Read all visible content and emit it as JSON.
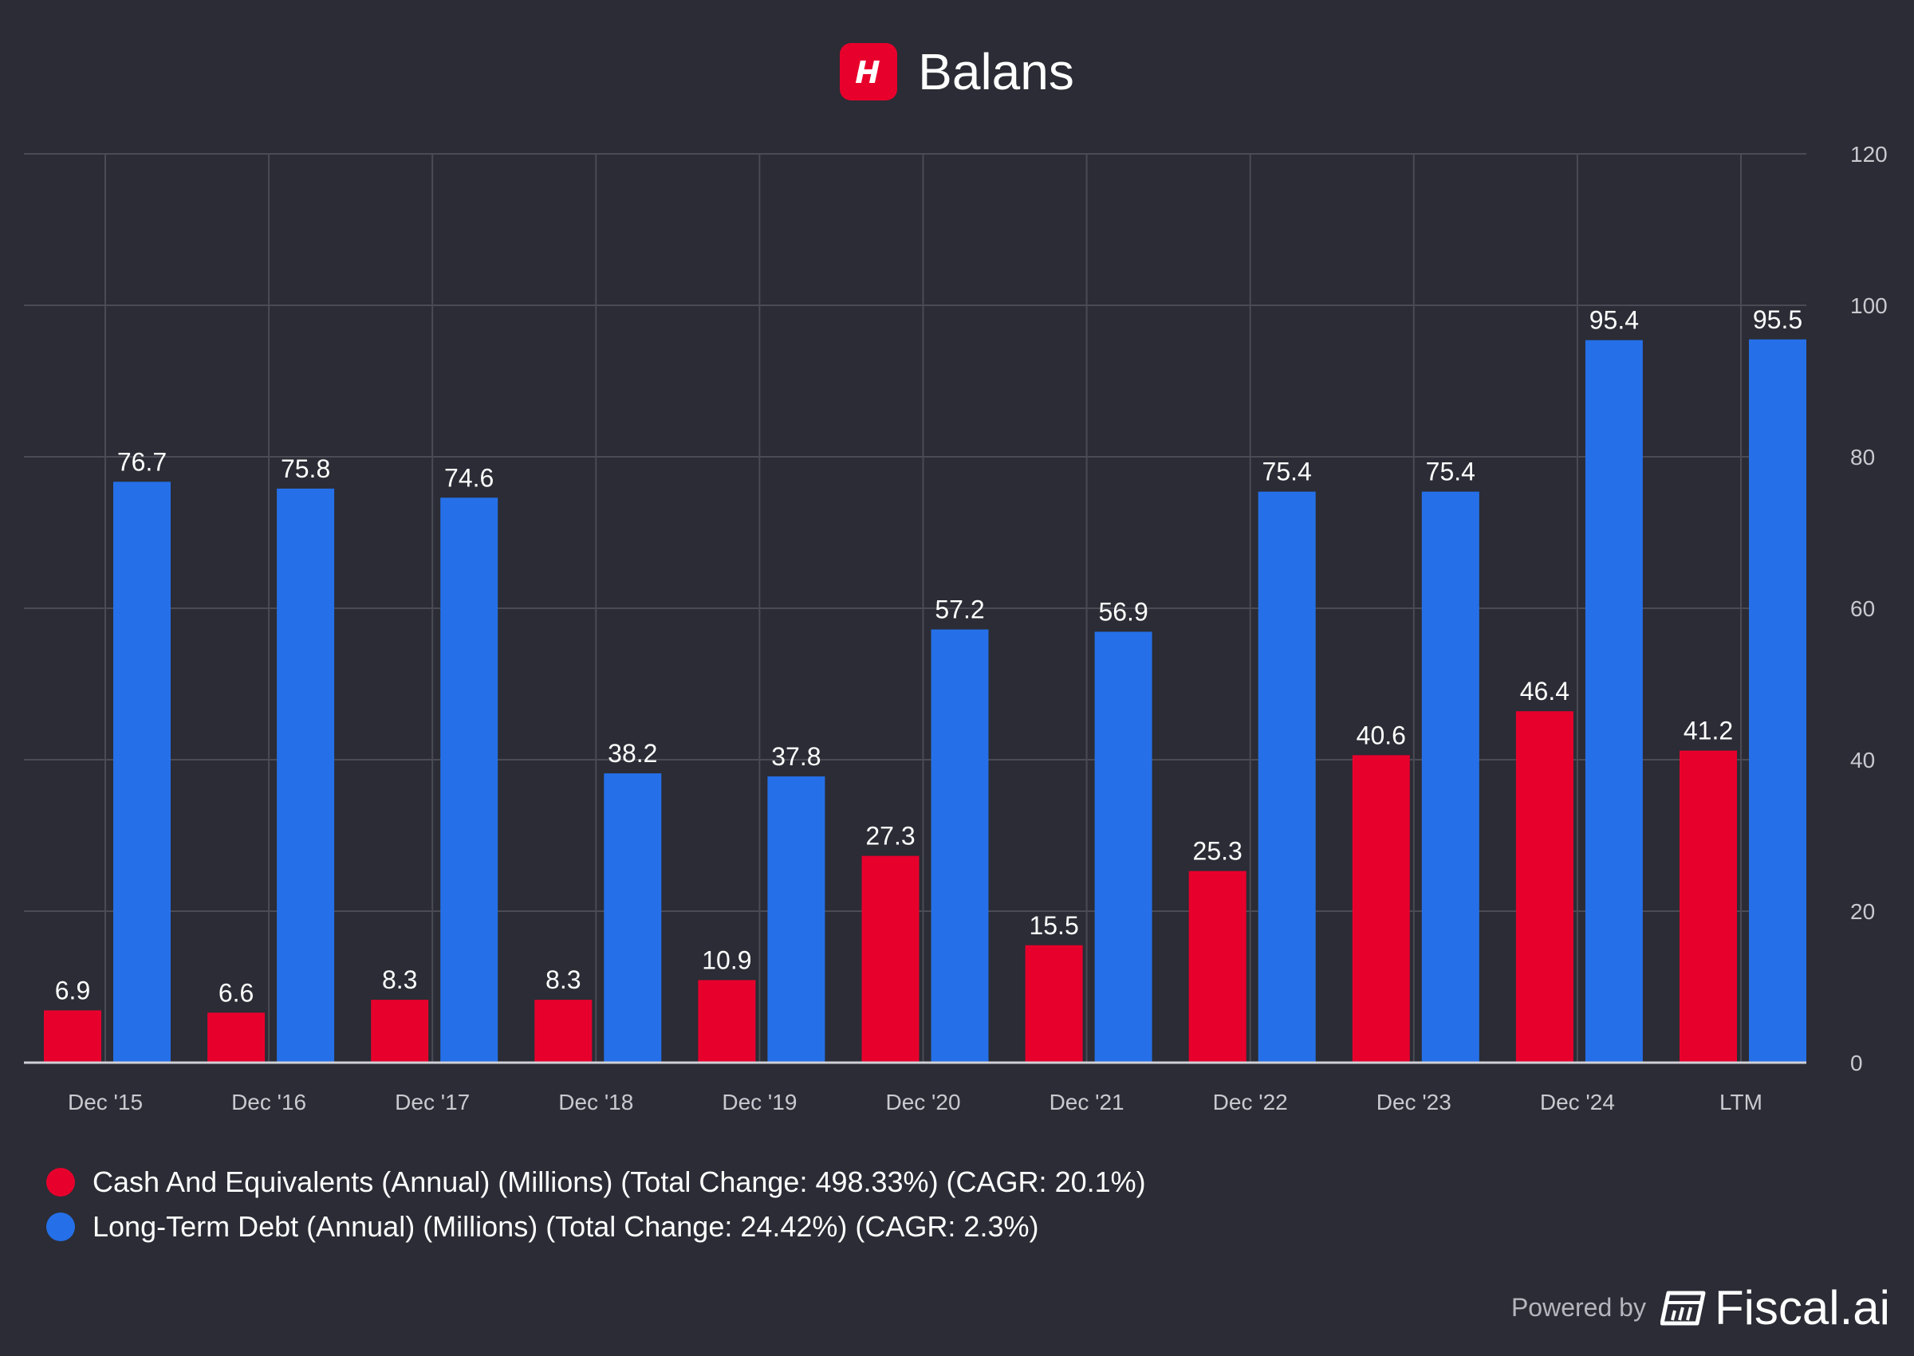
{
  "header": {
    "title": "Balans",
    "logo_letter": "H"
  },
  "footer": {
    "powered_label": "Powered by",
    "brand": "Fiscal.ai"
  },
  "colors": {
    "background": "#2b2c35",
    "cash": "#e8002d",
    "debt": "#2570e8",
    "grid": "#4a4b55",
    "axis_text": "#c9cacf"
  },
  "legend": [
    {
      "label": "Cash And Equivalents (Annual) (Millions) (Total Change: 498.33%) (CAGR: 20.1%)",
      "color": "#e8002d"
    },
    {
      "label": "Long-Term Debt (Annual) (Millions) (Total Change: 24.42%) (CAGR: 2.3%)",
      "color": "#2570e8"
    }
  ],
  "chart_data": {
    "type": "bar",
    "title": "Balans",
    "categories": [
      "Dec '15",
      "Dec '16",
      "Dec '17",
      "Dec '18",
      "Dec '19",
      "Dec '20",
      "Dec '21",
      "Dec '22",
      "Dec '23",
      "Dec '24",
      "LTM"
    ],
    "series": [
      {
        "name": "Cash And Equivalents (Annual) (Millions)",
        "color": "#e8002d",
        "values": [
          6.9,
          6.6,
          8.3,
          8.3,
          10.9,
          27.3,
          15.5,
          25.3,
          40.6,
          46.4,
          41.2
        ],
        "labels": [
          "6.9",
          "6.6",
          "8.3",
          "8.3",
          "10.9",
          "27.3",
          "15.5",
          "25.3",
          "40.6",
          "46.4",
          "41.2"
        ]
      },
      {
        "name": "Long-Term Debt (Annual) (Millions)",
        "color": "#2570e8",
        "values": [
          76.7,
          75.8,
          74.6,
          38.2,
          37.8,
          57.2,
          56.9,
          75.4,
          75.4,
          95.4,
          95.5
        ],
        "labels": [
          "76.7",
          "75.8",
          "74.6",
          "38.2",
          "37.8",
          "57.2",
          "56.9",
          "75.4",
          "75.4",
          "95.4",
          "95.5"
        ]
      }
    ],
    "ylim": [
      0,
      120
    ],
    "yticks": [
      "0",
      "20",
      "40",
      "60",
      "80",
      "100",
      "120"
    ],
    "y_axis_side": "right",
    "grid": true,
    "legend_position": "bottom-left"
  }
}
